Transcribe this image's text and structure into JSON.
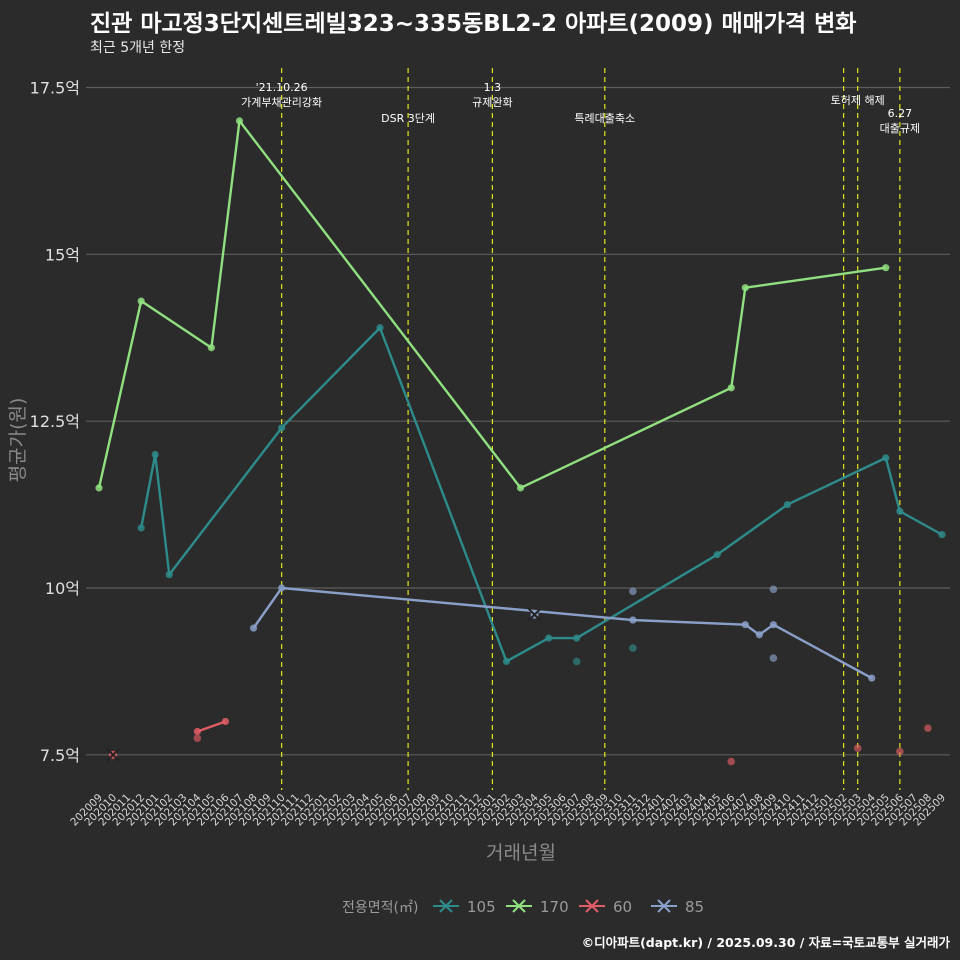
{
  "title": "진관 마고정3단지센트레빌323~335동BL2-2 아파트(2009) 매매가격 변화",
  "subtitle": "최근 5개년 한정",
  "caption": "©디아파트(dapt.kr) / 2025.09.30 / 자료=국토교통부 실거래가",
  "chart_data": {
    "type": "line",
    "xlabel": "거래년월",
    "ylabel": "평균가(원)",
    "ylim": [
      7.0,
      17.8
    ],
    "yticks": [
      {
        "value": 7.5,
        "label": "7.5억"
      },
      {
        "value": 10,
        "label": "10억"
      },
      {
        "value": 12.5,
        "label": "12.5억"
      },
      {
        "value": 15,
        "label": "15억"
      },
      {
        "value": 17.5,
        "label": "17.5억"
      }
    ],
    "categories": [
      "202009",
      "202010",
      "202011",
      "202012",
      "202101",
      "202102",
      "202103",
      "202104",
      "202105",
      "202106",
      "202107",
      "202108",
      "202109",
      "202110",
      "202111",
      "202112",
      "202201",
      "202202",
      "202203",
      "202204",
      "202205",
      "202206",
      "202207",
      "202208",
      "202209",
      "202210",
      "202211",
      "202212",
      "202301",
      "202302",
      "202303",
      "202304",
      "202305",
      "202306",
      "202307",
      "202308",
      "202309",
      "202310",
      "202311",
      "202312",
      "202401",
      "202402",
      "202403",
      "202404",
      "202405",
      "202406",
      "202407",
      "202408",
      "202409",
      "202410",
      "202411",
      "202412",
      "202501",
      "202502",
      "202503",
      "202504",
      "202505",
      "202506",
      "202507",
      "202508",
      "202509"
    ],
    "grid": true,
    "legend_position": "bottom",
    "legend_title": "전용면적(㎡)",
    "series": [
      {
        "name": "105",
        "color": "#2e8b8b",
        "line": [
          [
            "202012",
            10.9
          ],
          [
            "202101",
            12.0
          ],
          [
            "202102",
            10.2
          ],
          [
            "202110",
            12.4
          ],
          [
            "202205",
            13.9
          ],
          [
            "202302",
            8.9
          ],
          [
            "202305",
            9.25
          ],
          [
            "202307",
            9.25
          ],
          [
            "202405",
            10.5
          ],
          [
            "202410",
            11.25
          ],
          [
            "202505",
            11.95
          ],
          [
            "202506",
            11.15
          ],
          [
            "202509",
            10.8
          ]
        ],
        "points": [
          [
            "202307",
            8.9
          ],
          [
            "202311",
            9.1
          ]
        ]
      },
      {
        "name": "170",
        "color": "#90e080",
        "line": [
          [
            "202009",
            11.5
          ],
          [
            "202012",
            14.3
          ],
          [
            "202105",
            13.6
          ],
          [
            "202107",
            17.0
          ],
          [
            "202303",
            11.5
          ],
          [
            "202406",
            13.0
          ],
          [
            "202407",
            14.5
          ],
          [
            "202505",
            14.8
          ]
        ],
        "points": []
      },
      {
        "name": "60",
        "color": "#e05c64",
        "line": [
          [
            "202104",
            7.85
          ],
          [
            "202106",
            8.0
          ]
        ],
        "points": [
          [
            "202104",
            7.75
          ],
          [
            "202406",
            7.4
          ],
          [
            "202503",
            7.6
          ],
          [
            "202506",
            7.55
          ],
          [
            "202508",
            7.9
          ]
        ],
        "cross": [
          [
            "202010",
            7.5
          ]
        ]
      },
      {
        "name": "85",
        "color": "#8aa0c8",
        "line": [
          [
            "202108",
            9.4
          ],
          [
            "202110",
            10.0
          ],
          [
            "202311",
            9.52
          ],
          [
            "202407",
            9.45
          ],
          [
            "202408",
            9.3
          ],
          [
            "202409",
            9.45
          ],
          [
            "202504",
            8.65
          ]
        ],
        "points": [
          [
            "202311",
            9.95
          ],
          [
            "202409",
            9.98
          ],
          [
            "202409",
            8.95
          ]
        ],
        "cross": [
          [
            "202304",
            9.6
          ]
        ]
      }
    ],
    "events": [
      {
        "at": "202110",
        "label": "'21.10.26\n가계부채관리강화",
        "row": 0
      },
      {
        "at": "202207",
        "label": "DSR 3단계",
        "row": 1
      },
      {
        "at": "202301",
        "label": "1.3\n규제완화",
        "row": 0
      },
      {
        "at": "202309",
        "label": "특례대출축소",
        "row": 1
      },
      {
        "at": "202502",
        "label": "",
        "row": 0
      },
      {
        "at": "202503",
        "label": "토허제 해제",
        "row": 0
      },
      {
        "at": "202506",
        "label": "6.27\n대출규제",
        "row": 2
      }
    ]
  }
}
